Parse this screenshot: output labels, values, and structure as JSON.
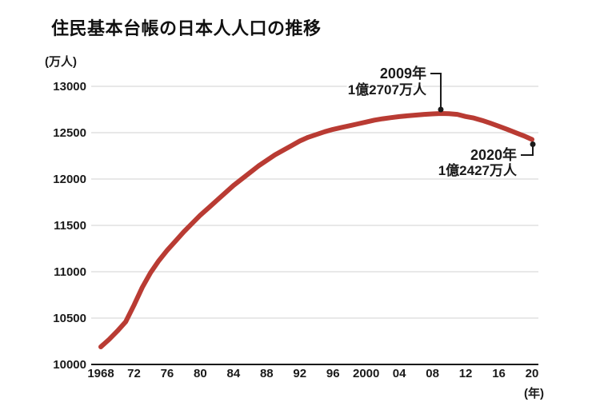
{
  "chart_data": {
    "type": "line",
    "title": "住民基本台帳の日本人人口の推移",
    "xlabel": "(年)",
    "ylabel": "(万人)",
    "xlim": [
      1968,
      2020
    ],
    "ylim": [
      10000,
      13000
    ],
    "yticks": [
      10000,
      10500,
      11000,
      11500,
      12000,
      12500,
      13000
    ],
    "xticks": [
      {
        "year": 1968,
        "label": "1968"
      },
      {
        "year": 1972,
        "label": "72"
      },
      {
        "year": 1976,
        "label": "76"
      },
      {
        "year": 1980,
        "label": "80"
      },
      {
        "year": 1984,
        "label": "84"
      },
      {
        "year": 1988,
        "label": "88"
      },
      {
        "year": 1992,
        "label": "92"
      },
      {
        "year": 1996,
        "label": "96"
      },
      {
        "year": 2000,
        "label": "2000"
      },
      {
        "year": 2004,
        "label": "04"
      },
      {
        "year": 2008,
        "label": "08"
      },
      {
        "year": 2012,
        "label": "12"
      },
      {
        "year": 2016,
        "label": "16"
      },
      {
        "year": 2020,
        "label": "20"
      }
    ],
    "grid": true,
    "legend": false,
    "colors": {
      "line": "#b93b33",
      "gridline": "#d9d9d9",
      "axis": "#1a1a1a",
      "text": "#1a1a1a",
      "background": "#ffffff"
    },
    "series": [
      {
        "name": "日本人人口",
        "x": [
          1968,
          1969,
          1970,
          1971,
          1972,
          1973,
          1974,
          1975,
          1976,
          1977,
          1978,
          1979,
          1980,
          1981,
          1982,
          1983,
          1984,
          1985,
          1986,
          1987,
          1988,
          1989,
          1990,
          1991,
          1992,
          1993,
          1994,
          1995,
          1996,
          1997,
          1998,
          1999,
          2000,
          2001,
          2002,
          2003,
          2004,
          2005,
          2006,
          2007,
          2008,
          2009,
          2010,
          2011,
          2012,
          2013,
          2014,
          2015,
          2016,
          2017,
          2018,
          2019,
          2020
        ],
        "values": [
          10190,
          10270,
          10360,
          10460,
          10640,
          10830,
          10990,
          11120,
          11230,
          11330,
          11430,
          11520,
          11610,
          11690,
          11770,
          11850,
          11930,
          12000,
          12070,
          12140,
          12200,
          12260,
          12310,
          12360,
          12410,
          12450,
          12480,
          12510,
          12535,
          12555,
          12575,
          12595,
          12615,
          12635,
          12650,
          12662,
          12673,
          12682,
          12690,
          12697,
          12703,
          12707,
          12704,
          12697,
          12674,
          12658,
          12632,
          12602,
          12570,
          12536,
          12501,
          12466,
          12427
        ]
      }
    ],
    "annotations": [
      {
        "year": 2009,
        "value": 12707,
        "line1": "2009年",
        "line2": "1億2707万人",
        "position": "above"
      },
      {
        "year": 2020,
        "value": 12427,
        "line1": "2020年",
        "line2": "1億2427万人",
        "position": "below"
      }
    ]
  }
}
